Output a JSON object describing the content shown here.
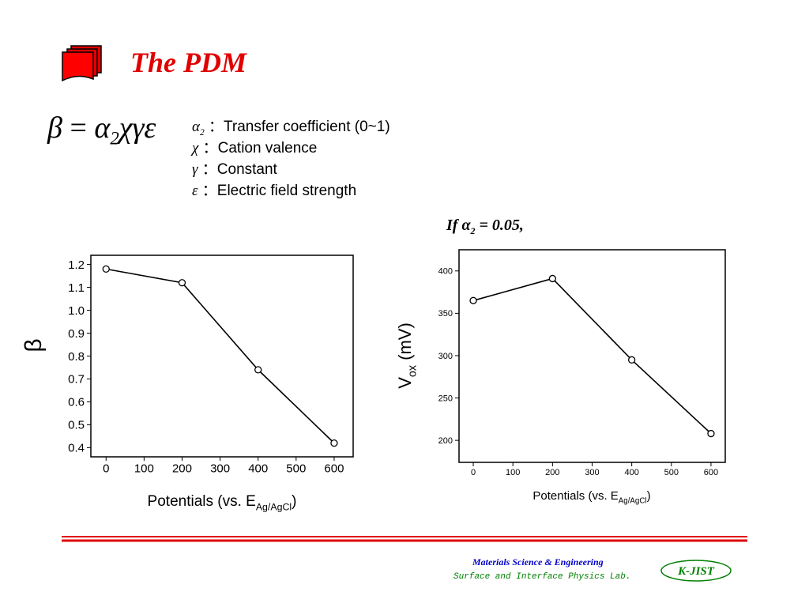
{
  "title": "The PDM",
  "equation": {
    "lhs": "β",
    "eq": "=",
    "alpha": "α",
    "sub": "2",
    "rest": "χγε"
  },
  "definitions": [
    {
      "symbol": "α",
      "sub": "2",
      "text": "：Transfer coefficient (0~1)"
    },
    {
      "symbol": "χ",
      "text": "：Cation valence"
    },
    {
      "symbol": "γ",
      "text": "：Constant"
    },
    {
      "symbol": "ε",
      "text": "：Electric field strength"
    }
  ],
  "condition": {
    "pre": "If",
    "alpha": "α",
    "sub": "2",
    "post": "= 0.05,"
  },
  "chart_data": [
    {
      "type": "line",
      "x": [
        0,
        200,
        400,
        600
      ],
      "series": [
        {
          "color": "#000000",
          "values": [
            1.18,
            1.12,
            0.74,
            0.42
          ]
        }
      ],
      "xlim": [
        -40,
        650
      ],
      "xticks": [
        0,
        100,
        200,
        300,
        400,
        500,
        600
      ],
      "ylim": [
        0.36,
        1.24
      ],
      "yticks": [
        0.4,
        0.5,
        0.6,
        0.7,
        0.8,
        0.9,
        {
          "value": 1,
          "label": "1.0"
        },
        1.1,
        1.2
      ],
      "xlabel": {
        "main": "Potentials (vs. E",
        "sub": "Ag/AgCl",
        "end": ")"
      },
      "ylabel": {
        "main": "β"
      }
    },
    {
      "type": "line",
      "x": [
        0,
        200,
        400,
        600
      ],
      "series": [
        {
          "color": "#000000",
          "values": [
            365,
            391,
            295,
            208
          ]
        }
      ],
      "xlim": [
        -36,
        636
      ],
      "xticks": [
        0,
        100,
        200,
        300,
        400,
        500,
        600
      ],
      "ylim": [
        174,
        425
      ],
      "yticks": [
        200,
        250,
        300,
        350,
        400
      ],
      "xlabel": {
        "main": "Potentials (vs. E",
        "sub": "Ag/AgCl",
        "end": ")"
      },
      "ylabel": {
        "main": "V",
        "sub": "ox",
        "end": " (mV)"
      }
    }
  ],
  "footer": {
    "line1": "Materials Science & Engineering",
    "line2": "Surface and Interface Physics Lab.",
    "logo": "K-JIST"
  }
}
